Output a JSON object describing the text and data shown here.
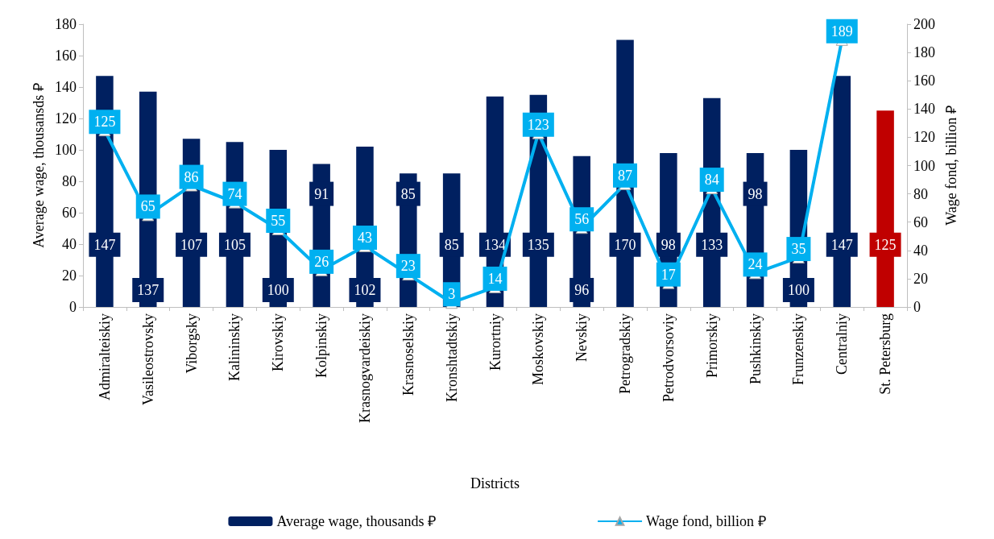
{
  "chart_data": {
    "type": "bar",
    "xlabel": "Districts",
    "ylabel": "Average wage, thousansds ₽",
    "y2label": "Wage fond, billion ₽",
    "categories": [
      "Admiralteiskiy",
      "Vasileostrovsky",
      "Viborgsky",
      "Kalininskiy",
      "Kirovskiy",
      "Kolpinskiy",
      "Krasnogvardeiskiy",
      "Krasnoselskiy",
      "Kronshtadtskiy",
      "Kurortniy",
      "Moskovskiy",
      "Nevskiy",
      "Petrogradskiy",
      "Petrodvorsoviy",
      "Primorskiy",
      "Pushkinskiy",
      "Frunzenskiy",
      "Centralniy",
      "St. Petersburg"
    ],
    "series": [
      {
        "name": "Average wage, thousands ₽",
        "color": "#002060",
        "colors": [
          "#002060",
          "#002060",
          "#002060",
          "#002060",
          "#002060",
          "#002060",
          "#002060",
          "#002060",
          "#002060",
          "#002060",
          "#002060",
          "#002060",
          "#002060",
          "#002060",
          "#002060",
          "#002060",
          "#002060",
          "#002060",
          "#c00000"
        ],
        "values": [
          147,
          137,
          107,
          105,
          100,
          91,
          102,
          85,
          85,
          134,
          135,
          96,
          170,
          98,
          133,
          98,
          100,
          147,
          125
        ]
      },
      {
        "name": "Wage fond, billion ₽",
        "type": "line",
        "axis": "y2",
        "color": "#00b0f0",
        "marker": "triangle",
        "values": [
          125,
          65,
          86,
          74,
          55,
          26,
          43,
          23,
          3,
          14,
          123,
          56,
          87,
          17,
          84,
          24,
          35,
          189,
          null
        ]
      }
    ],
    "ylim": [
      0,
      180
    ],
    "yticks": [
      0,
      20,
      40,
      60,
      80,
      100,
      120,
      140,
      160,
      180
    ],
    "y2lim": [
      0,
      200
    ],
    "y2ticks": [
      0,
      20,
      40,
      60,
      80,
      100,
      120,
      140,
      160,
      180,
      200
    ],
    "data_labels": true,
    "grid": false,
    "legend": "bottom"
  }
}
